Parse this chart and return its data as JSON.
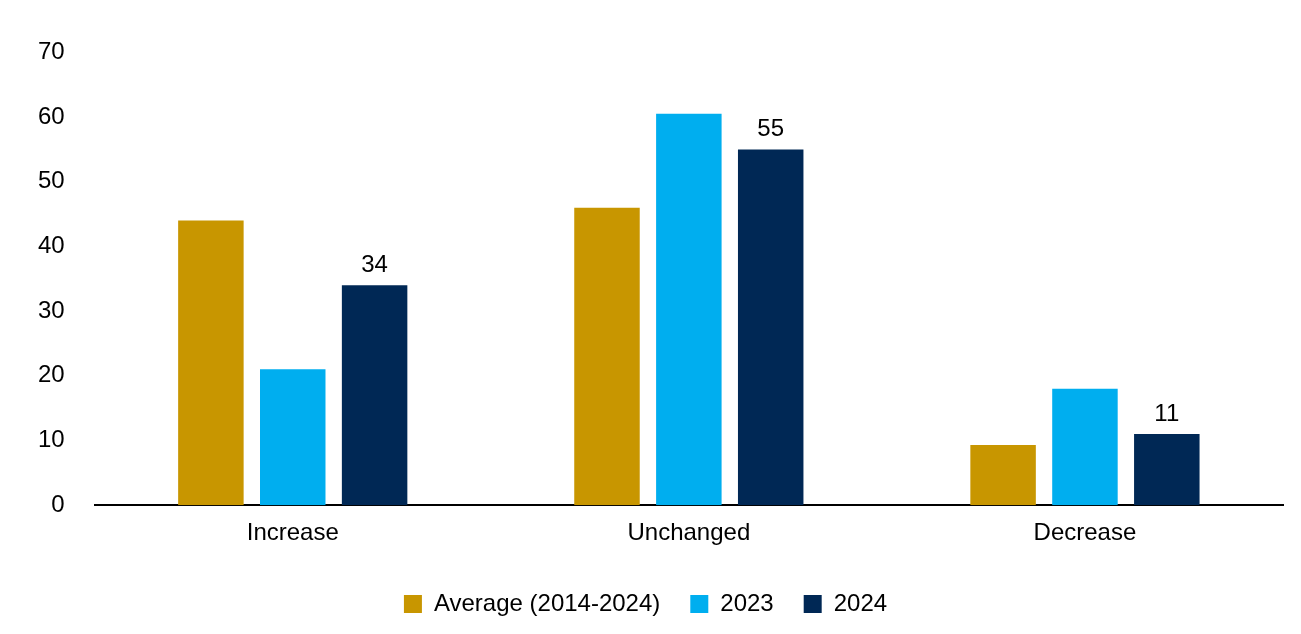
{
  "chart_data": {
    "type": "bar",
    "categories": [
      "Increase",
      "Unchanged",
      "Decrease"
    ],
    "series": [
      {
        "name": "Average (2014-2024)",
        "color": "#c89600",
        "values": [
          44,
          46,
          9.3
        ]
      },
      {
        "name": "2023",
        "color": "#00aeef",
        "values": [
          21,
          60.5,
          18
        ]
      },
      {
        "name": "2024",
        "color": "#002855",
        "values": [
          34,
          55,
          11
        ],
        "value_labels": [
          "34",
          "55",
          "11"
        ]
      }
    ],
    "ylim": [
      0,
      70
    ],
    "yticks": [
      0,
      10,
      20,
      30,
      40,
      50,
      60,
      70
    ],
    "grid": false,
    "legend": "bottom"
  }
}
